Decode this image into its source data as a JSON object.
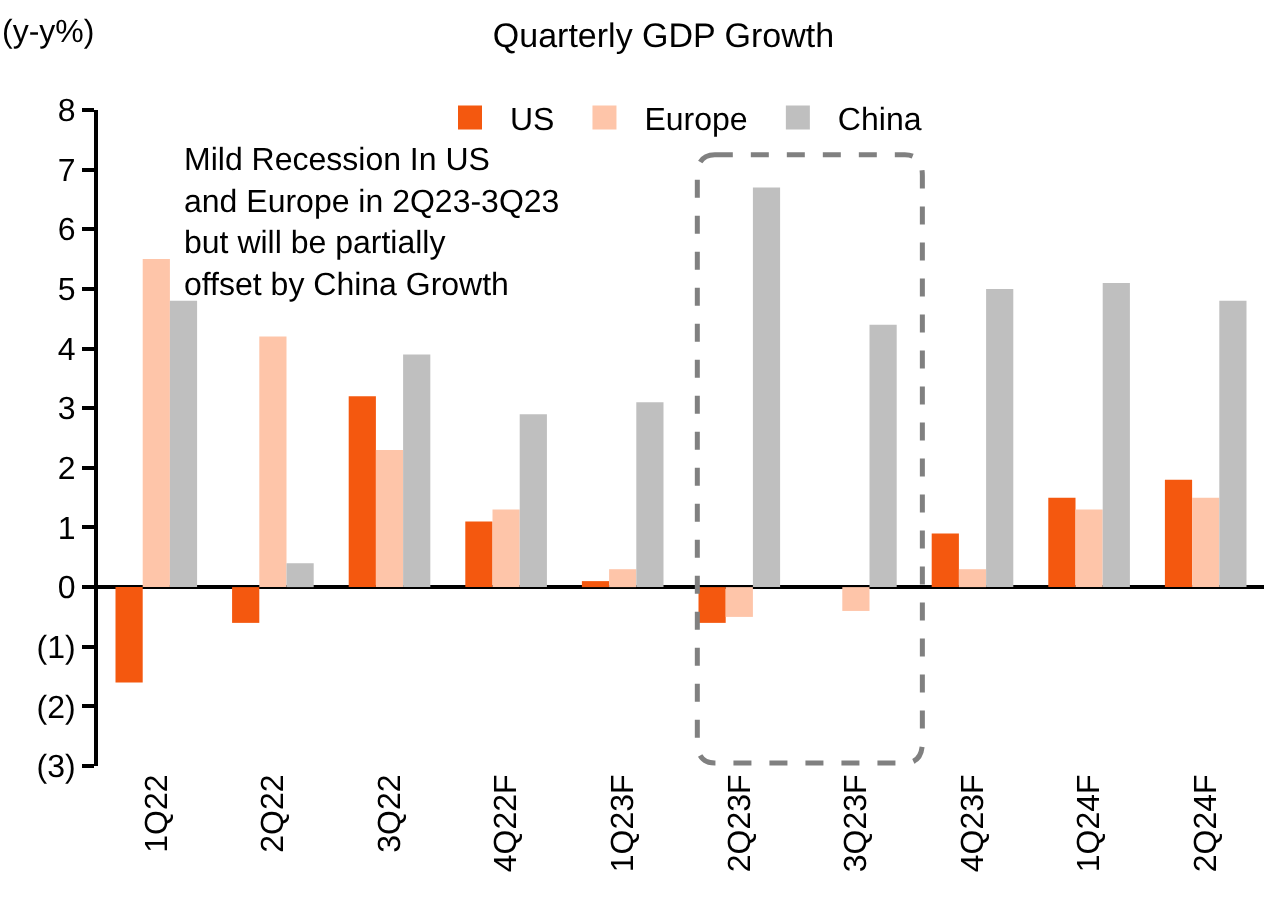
{
  "chart_data": {
    "type": "bar",
    "title": "Quarterly GDP Growth",
    "ylabel": "(y-y%)",
    "categories": [
      "1Q22",
      "2Q22",
      "3Q22",
      "4Q22F",
      "1Q23F",
      "2Q23F",
      "3Q23F",
      "4Q23F",
      "1Q24F",
      "2Q24F"
    ],
    "series": [
      {
        "name": "US",
        "color": "#f4580f",
        "values": [
          -1.6,
          -0.6,
          3.2,
          1.1,
          0.1,
          -0.6,
          0,
          0.9,
          1.5,
          1.8
        ]
      },
      {
        "name": "Europe",
        "color": "#fec5a9",
        "values": [
          5.5,
          4.2,
          2.3,
          1.3,
          0.3,
          -0.5,
          -0.4,
          0.3,
          1.3,
          1.5
        ]
      },
      {
        "name": "China",
        "color": "#bfbfbf",
        "values": [
          4.8,
          0.4,
          3.9,
          2.9,
          3.1,
          6.7,
          4.4,
          5.0,
          5.1,
          4.8
        ]
      }
    ],
    "ylim": [
      -3,
      8
    ],
    "yticks": [
      {
        "value": -3,
        "label": "(3)"
      },
      {
        "value": -2,
        "label": "(2)"
      },
      {
        "value": -1,
        "label": "(1)"
      },
      0,
      1,
      2,
      3,
      4,
      5,
      6,
      7,
      8
    ],
    "annotations": [
      "Mild Recession In US\nand Europe in 2Q23-3Q23\nbut will be partially\noffset by China Growth"
    ],
    "legend": "top"
  }
}
